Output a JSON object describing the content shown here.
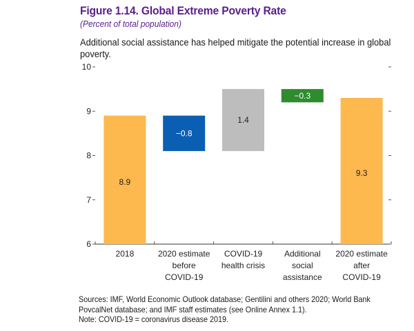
{
  "header": {
    "title": "Figure 1.14. Global Extreme Poverty Rate",
    "subtitle": "(Percent of total population)",
    "description": "Additional social assistance has helped mitigate the potential increase in global poverty."
  },
  "footer": {
    "sources": "Sources: IMF, World Economic Outlook database; Gentilini and others 2020; World Bank PovcalNet database; and IMF staff estimates (see Online Annex 1.1).",
    "note": "Note: COVID-19 = coronavirus disease 2019."
  },
  "chart_data": {
    "type": "bar",
    "subtype": "waterfall",
    "title": "Figure 1.14. Global Extreme Poverty Rate",
    "subtitle": "(Percent of total population)",
    "xlabel": "",
    "ylabel": "Percent of total population",
    "ylim": [
      6,
      10
    ],
    "yticks": [
      6,
      7,
      8,
      9,
      10
    ],
    "grid": false,
    "legend": "none",
    "categories": [
      [
        "2018"
      ],
      [
        "2020 estimate",
        "before",
        "COVID-19"
      ],
      [
        "COVID-19",
        "health crisis"
      ],
      [
        "Additional",
        "social",
        "assistance"
      ],
      [
        "2020 estimate",
        "after",
        "COVID-19"
      ]
    ],
    "bars": [
      {
        "name": "2018",
        "kind": "total",
        "start": 6,
        "end": 8.9,
        "label": "8.9",
        "color": "#fdb94e",
        "label_color": "#222222"
      },
      {
        "name": "2020 estimate before COVID-19",
        "kind": "change",
        "start": 8.9,
        "end": 8.1,
        "label": "−0.8",
        "color": "#0b5fb3",
        "label_color": "#ffffff"
      },
      {
        "name": "COVID-19 health crisis",
        "kind": "change",
        "start": 8.1,
        "end": 9.5,
        "label": "1.4",
        "color": "#bdbdbd",
        "label_color": "#222222"
      },
      {
        "name": "Additional social assistance",
        "kind": "change",
        "start": 9.5,
        "end": 9.2,
        "label": "−0.3",
        "color": "#2e8b2e",
        "label_color": "#ffffff"
      },
      {
        "name": "2020 estimate after COVID-19",
        "kind": "total",
        "start": 6,
        "end": 9.3,
        "label": "9.3",
        "color": "#fdb94e",
        "label_color": "#222222"
      }
    ]
  }
}
